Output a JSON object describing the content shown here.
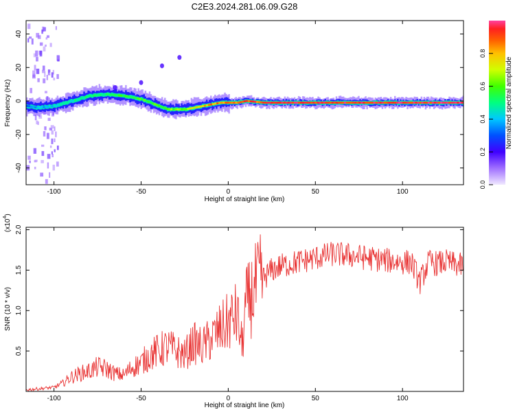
{
  "figure_title": "C2E3.2024.281.06.09.G28",
  "chart_data": [
    {
      "type": "heatmap",
      "title": "C2E3.2024.281.06.09.G28",
      "xlabel": "Height of straight line (km)",
      "ylabel": "Frequency (Hz)",
      "xlim": [
        -116,
        135
      ],
      "ylim": [
        -50,
        48
      ],
      "x_ticks": [
        -100,
        -50,
        0,
        50,
        100
      ],
      "y_ticks": [
        -40,
        -20,
        0,
        20,
        40
      ],
      "colorbar": {
        "label": "Normalized spectral amplitude",
        "range": [
          0,
          1
        ],
        "ticks": [
          0.0,
          0.2,
          0.4,
          0.6,
          0.8
        ],
        "colors": [
          "#f0e8ff",
          "#a070ff",
          "#4000ff",
          "#0050ff",
          "#00c8ff",
          "#00ff80",
          "#40ff00",
          "#d0ff00",
          "#ffc000",
          "#ff6000",
          "#ff2020",
          "#ff40a0"
        ]
      },
      "ridge": {
        "x": [
          -116,
          -110,
          -100,
          -90,
          -80,
          -70,
          -60,
          -50,
          -40,
          -35,
          -30,
          -25,
          -20,
          -15,
          -10,
          -5,
          0,
          5,
          10,
          20,
          30,
          40,
          50,
          60,
          70,
          80,
          90,
          100,
          110,
          120,
          135
        ],
        "frequency": [
          -3,
          -4,
          -3,
          0,
          3,
          4,
          3,
          1,
          -3,
          -5,
          -5,
          -5,
          -4,
          -3,
          -2,
          -1,
          -1,
          -1,
          0,
          -1,
          -1,
          -1,
          -1,
          -1,
          -1,
          -1,
          -1,
          -1,
          -1,
          -1,
          -1
        ],
        "amplitude": [
          0.3,
          0.35,
          0.4,
          0.45,
          0.5,
          0.5,
          0.55,
          0.55,
          0.55,
          0.6,
          0.6,
          0.65,
          0.7,
          0.75,
          0.8,
          0.85,
          0.85,
          0.85,
          0.9,
          0.9,
          0.95,
          0.95,
          0.95,
          0.95,
          0.95,
          0.95,
          0.95,
          0.95,
          0.95,
          0.95,
          0.95
        ]
      }
    },
    {
      "type": "line",
      "xlabel": "Height of straight line (km)",
      "ylabel": "SNR (10 * v/v)",
      "y_multiplier": "(x10",
      "y_multiplier_exp": "4",
      "xlim": [
        -116,
        135
      ],
      "ylim": [
        0,
        2.03
      ],
      "x_ticks": [
        -100,
        -50,
        0,
        50,
        100
      ],
      "y_ticks": [
        0.5,
        1.0,
        1.5,
        2.0
      ],
      "line_color": "#e83030",
      "series": [
        {
          "x": [
            -116,
            -110,
            -105,
            -100,
            -95,
            -90,
            -85,
            -80,
            -75,
            -70,
            -65,
            -60,
            -55,
            -50,
            -45,
            -40,
            -35,
            -30,
            -25,
            -20,
            -15,
            -10,
            -5,
            0,
            5,
            8,
            10,
            15,
            20,
            25,
            30,
            40,
            50,
            60,
            70,
            80,
            90,
            100,
            105,
            110,
            115,
            120,
            125,
            130,
            135
          ],
          "values": [
            0.02,
            0.03,
            0.04,
            0.05,
            0.1,
            0.18,
            0.22,
            0.25,
            0.3,
            0.28,
            0.22,
            0.2,
            0.3,
            0.35,
            0.45,
            0.5,
            0.55,
            0.5,
            0.45,
            0.6,
            0.55,
            0.65,
            0.75,
            0.85,
            0.95,
            0.55,
            1.05,
            1.25,
            1.4,
            1.5,
            1.55,
            1.6,
            1.65,
            1.7,
            1.68,
            1.65,
            1.62,
            1.6,
            1.6,
            1.35,
            1.6,
            1.58,
            1.6,
            1.57,
            1.55
          ]
        }
      ]
    }
  ]
}
